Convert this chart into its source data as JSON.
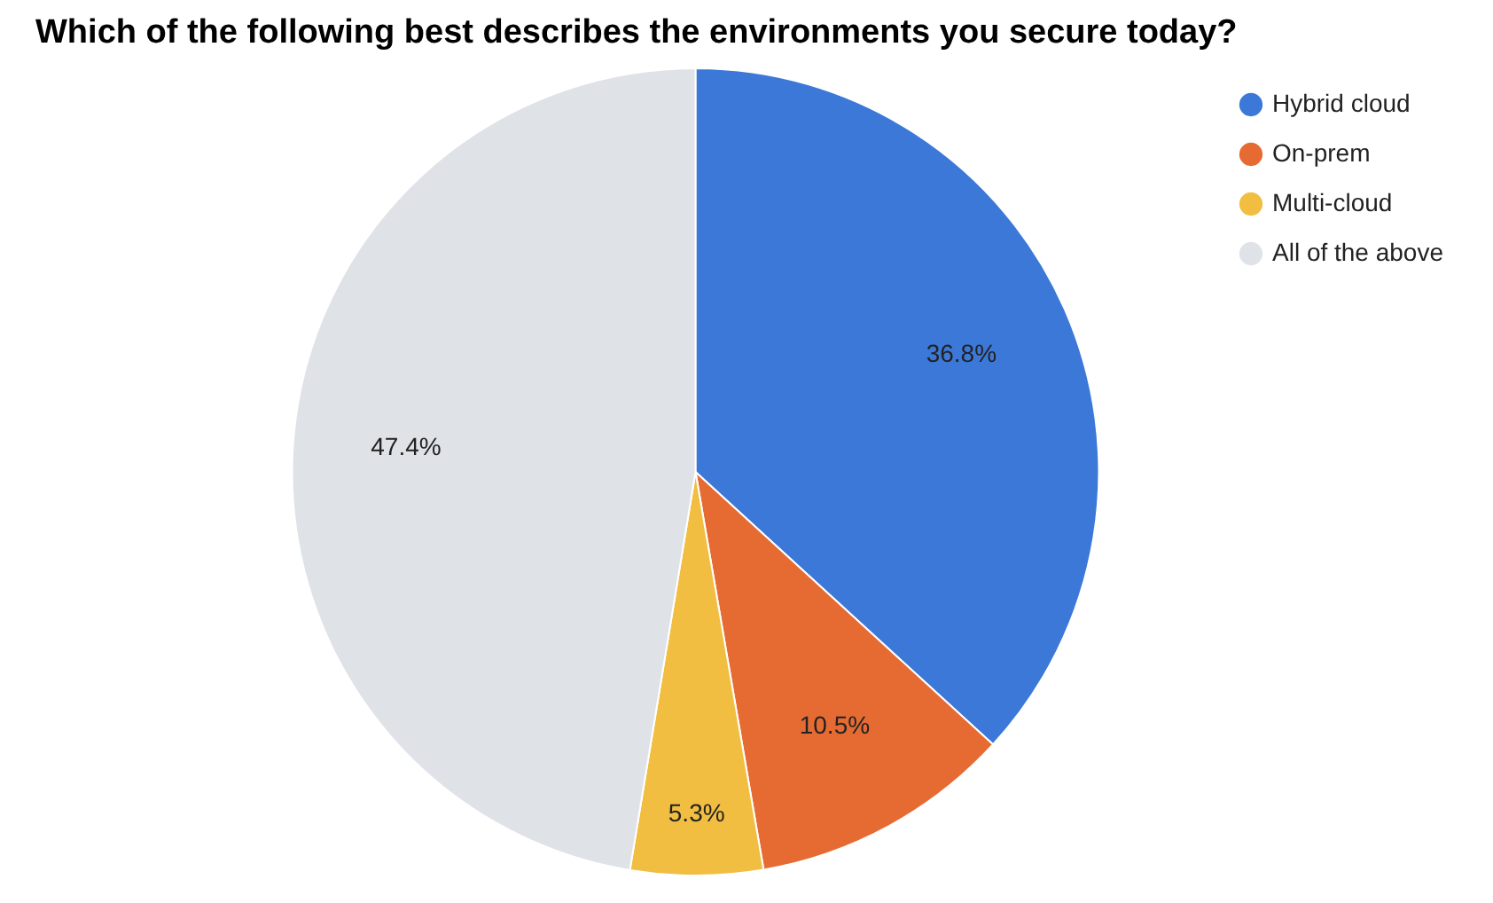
{
  "chart_data": {
    "type": "pie",
    "title": "Which of the following best describes the environments you secure today?",
    "categories": [
      "Hybrid cloud",
      "On-prem",
      "Multi-cloud",
      "All of the above"
    ],
    "values": [
      36.8,
      10.5,
      5.3,
      47.4
    ],
    "colors": [
      "#3b78d8",
      "#e66b33",
      "#f1be42",
      "#dfe3e8"
    ],
    "value_labels": [
      "36.8%",
      "10.5%",
      "5.3%",
      "47.4%"
    ],
    "legend": "top right"
  }
}
